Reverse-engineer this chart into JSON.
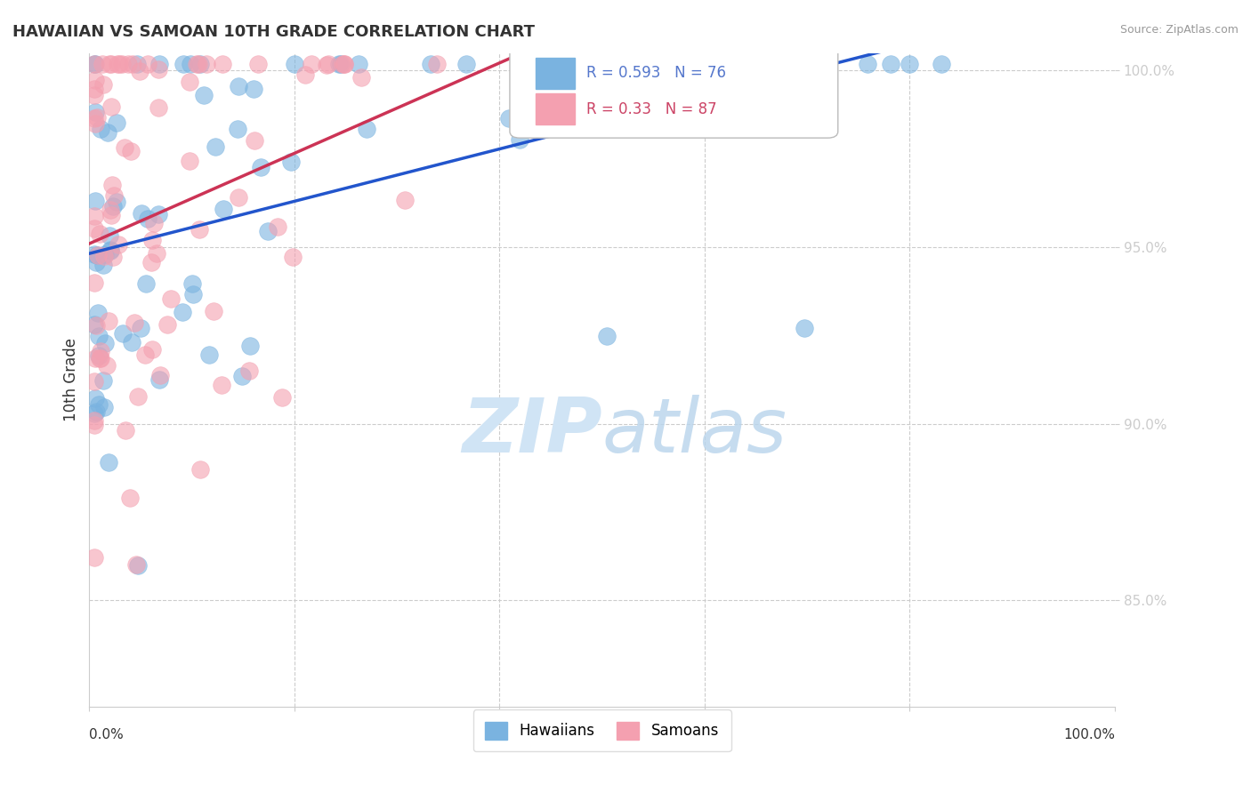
{
  "title": "HAWAIIAN VS SAMOAN 10TH GRADE CORRELATION CHART",
  "source": "Source: ZipAtlas.com",
  "ylabel": "10th Grade",
  "xlim": [
    0.0,
    1.0
  ],
  "ylim": [
    0.82,
    1.005
  ],
  "yticks": [
    0.85,
    0.9,
    0.95,
    1.0
  ],
  "ytick_labels": [
    "85.0%",
    "90.0%",
    "95.0%",
    "100.0%"
  ],
  "background_color": "#ffffff",
  "watermark_zip": "ZIP",
  "watermark_atlas": "atlas",
  "watermark_color": "#d0e4f5",
  "legend_blue_label": "Hawaiians",
  "legend_pink_label": "Samoans",
  "R_blue": 0.593,
  "N_blue": 76,
  "R_pink": 0.33,
  "N_pink": 87,
  "blue_color": "#7ab3e0",
  "pink_color": "#f4a0b0",
  "trend_blue": "#2255cc",
  "trend_pink": "#cc3355"
}
